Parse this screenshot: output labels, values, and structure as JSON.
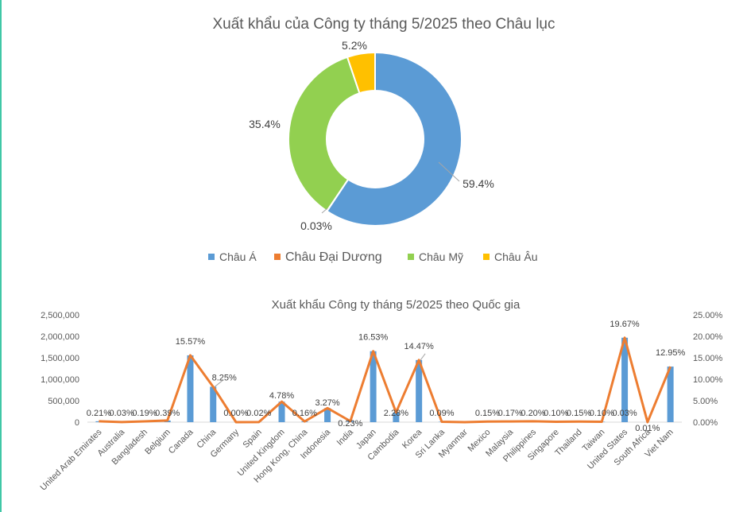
{
  "chart_data": [
    {
      "type": "pie",
      "subtype": "donut",
      "title": "Xuất khẩu của Công ty tháng 5/2025 theo Châu lục",
      "categories": [
        "Châu Á",
        "Châu Đại Dương",
        "Châu Mỹ",
        "Châu Âu"
      ],
      "values": [
        59.4,
        0.03,
        35.4,
        5.2
      ],
      "labels": [
        "59.4%",
        "0.03%",
        "35.4%",
        "5.2%"
      ],
      "colors": [
        "#5b9bd5",
        "#ed7d31",
        "#92d050",
        "#ffc000"
      ],
      "legend_position": "bottom"
    },
    {
      "type": "bar",
      "combo": "bar + line (secondary axis)",
      "title": "Xuất khẩu Công ty tháng 5/2025 theo Quốc gia",
      "categories": [
        "United Arab Emirates",
        "Australia",
        "Bangladesh",
        "Belgium",
        "Canada",
        "China",
        "Germany",
        "Spain",
        "United Kingdom",
        "Hong Kong, China",
        "Indonesia",
        "India",
        "Japan",
        "Cambodia",
        "Korea",
        "Sri Lanka",
        "Myanmar",
        "Mexico",
        "Malaysia",
        "Philippines",
        "Singapore",
        "Thailand",
        "Taiwan",
        "United States",
        "South Africa",
        "Viet Nam"
      ],
      "y_ticks": [
        "0",
        "500,000",
        "1,000,000",
        "1,500,000",
        "2,000,000",
        "2,500,000"
      ],
      "y2_ticks": [
        "0.00%",
        "5.00%",
        "10.00%",
        "15.00%",
        "20.00%",
        "25.00%"
      ],
      "ylim": [
        0,
        2500000
      ],
      "y2lim": [
        0,
        25
      ],
      "series": [
        {
          "type": "bar",
          "color": "#5b9bd5",
          "values": [
            21000,
            3000,
            19000,
            39000,
            1557000,
            825000,
            0,
            2000,
            478000,
            16000,
            327000,
            23000,
            1653000,
            228000,
            1447000,
            9000,
            0,
            15000,
            17000,
            20000,
            10000,
            15000,
            10000,
            1967000,
            1000,
            1295000
          ]
        },
        {
          "type": "line",
          "color": "#ed7d31",
          "axis": "secondary",
          "values": [
            0.21,
            0.03,
            0.19,
            0.39,
            15.57,
            8.25,
            0.0,
            0.02,
            4.78,
            0.16,
            3.27,
            0.23,
            16.53,
            2.28,
            14.47,
            0.09,
            0.0,
            0.15,
            0.17,
            0.2,
            0.1,
            0.15,
            0.1,
            19.67,
            0.01,
            12.95
          ]
        }
      ],
      "data_labels": [
        "0.21%",
        "0.03%",
        "0.19%",
        "0.39%",
        "15.57%",
        "8.25%",
        "0.00%",
        "0.02%",
        "4.78%",
        "0.16%",
        "3.27%",
        "0.23%",
        "16.53%",
        "2.28%",
        "14.47%",
        "0.09%",
        "",
        "0.15%",
        "0.17%",
        "0.20%",
        "0.10%",
        "0.15%",
        "0.10%",
        "19.67%",
        "0.01%",
        "12.95%"
      ],
      "extra_label": "0.03%"
    }
  ]
}
